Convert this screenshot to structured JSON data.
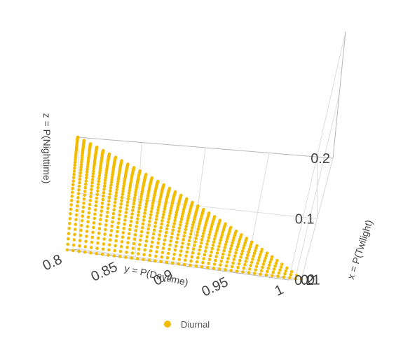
{
  "chart_data": {
    "type": "scatter",
    "projection": "3d",
    "title": "",
    "xlabel": "x = P(Twilight)",
    "ylabel": "y = P(Daytime)",
    "zlabel": "z = P(Nighttime)",
    "xlim": [
      0,
      0.2
    ],
    "ylim": [
      0.8,
      1
    ],
    "zlim": [
      0,
      0.2
    ],
    "x_ticks": [
      "0",
      "0.1",
      "0.2"
    ],
    "y_ticks": [
      "0.8",
      "0.85",
      "0.9",
      "0.95",
      "1"
    ],
    "z_ticks": [
      "0.1",
      "0.2"
    ],
    "grid": true,
    "legend_position": "bottom",
    "series": [
      {
        "name": "Diurnal",
        "color": "#F2BC00",
        "constraint": "x + y + z = 1",
        "points_from_grid": {
          "step": 0.005,
          "y_min": 0.8
        }
      }
    ]
  }
}
